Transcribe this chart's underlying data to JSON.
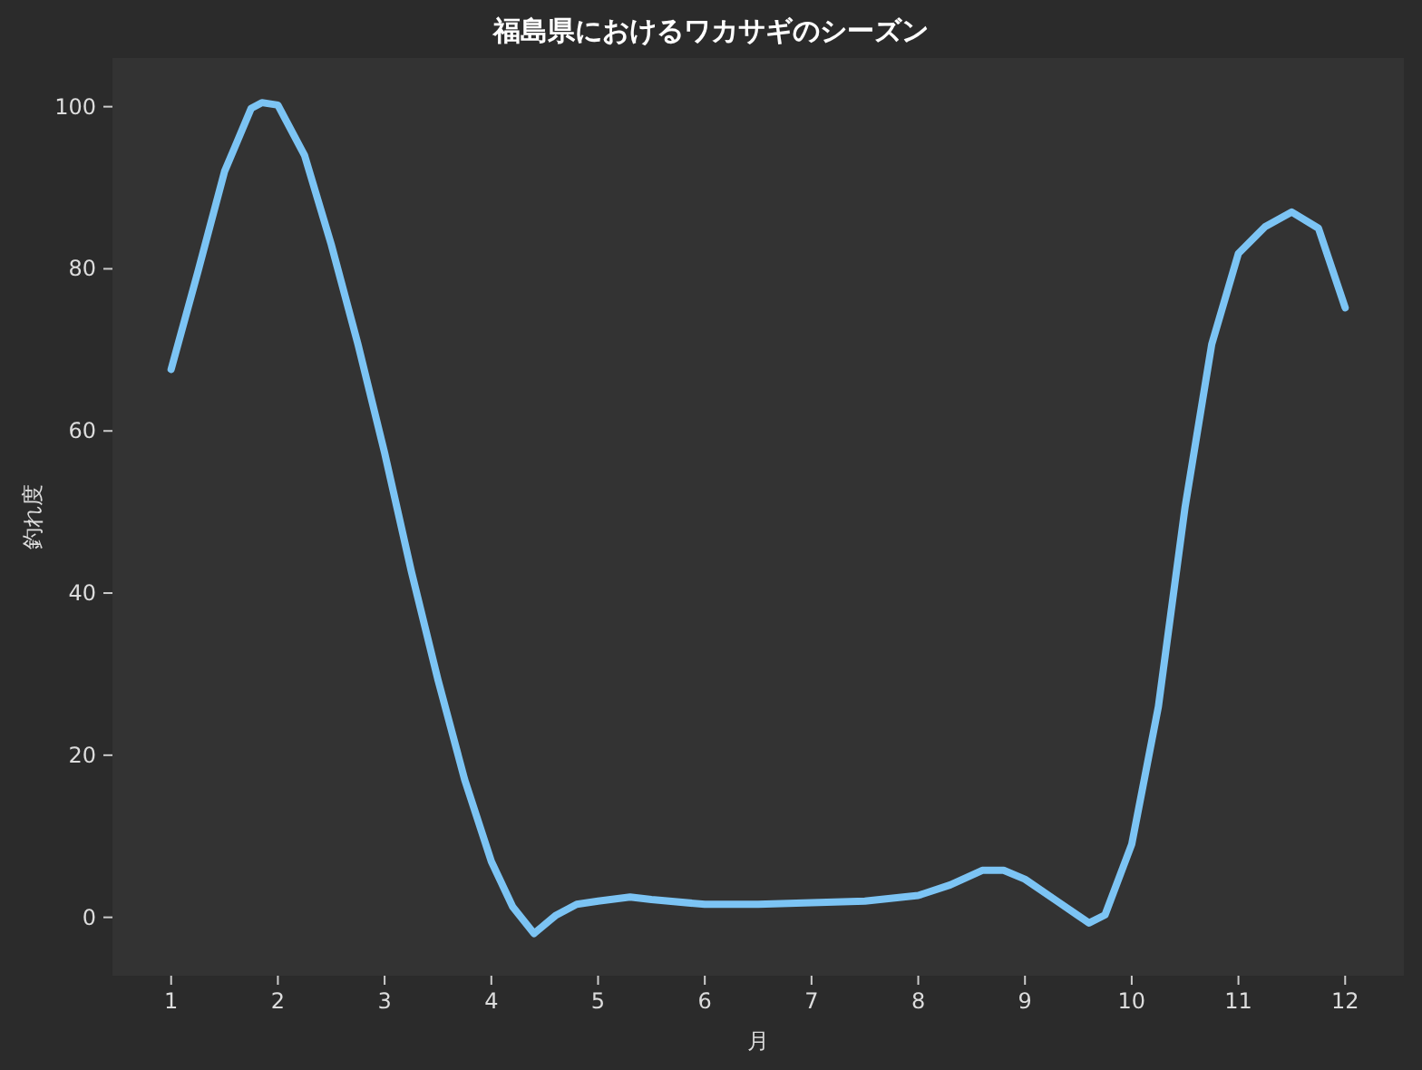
{
  "chart_data": {
    "type": "line",
    "title": "福島県におけるワカサギのシーズン",
    "xlabel": "月",
    "ylabel": "釣れ度",
    "series": [
      {
        "color": "#7cc4f4",
        "x": [
          1,
          1.25,
          1.5,
          1.75,
          1.85,
          2,
          2.25,
          2.5,
          2.75,
          3,
          3.25,
          3.5,
          3.75,
          4,
          4.2,
          4.4,
          4.6,
          4.8,
          5,
          5.3,
          5.5,
          6,
          6.5,
          7,
          7.5,
          8,
          8.3,
          8.6,
          8.8,
          9,
          9.3,
          9.5,
          9.6,
          9.75,
          10,
          10.25,
          10.5,
          10.75,
          11,
          11.25,
          11.5,
          11.75,
          12
        ],
        "values": [
          67.6,
          79.6,
          92,
          99.8,
          100.5,
          100.2,
          94,
          83,
          70.7,
          57.3,
          42.7,
          29.3,
          17,
          6.9,
          1.3,
          -2,
          0.2,
          1.6,
          2,
          2.5,
          2.2,
          1.6,
          1.6,
          1.8,
          2,
          2.7,
          4,
          5.8,
          5.8,
          4.7,
          2,
          0.2,
          -0.7,
          0.3,
          9,
          26,
          50.6,
          70.7,
          81.9,
          85.2,
          87,
          85,
          75.2
        ]
      }
    ],
    "xlim": [
      0.45,
      12.55
    ],
    "xticks": [
      1,
      2,
      3,
      4,
      5,
      6,
      7,
      8,
      9,
      10,
      11,
      12
    ],
    "ylim": [
      -7.2,
      106
    ],
    "yticks": [
      0,
      20,
      40,
      60,
      80,
      100
    ],
    "grid": false,
    "marker": "none",
    "line_style": "solid"
  }
}
